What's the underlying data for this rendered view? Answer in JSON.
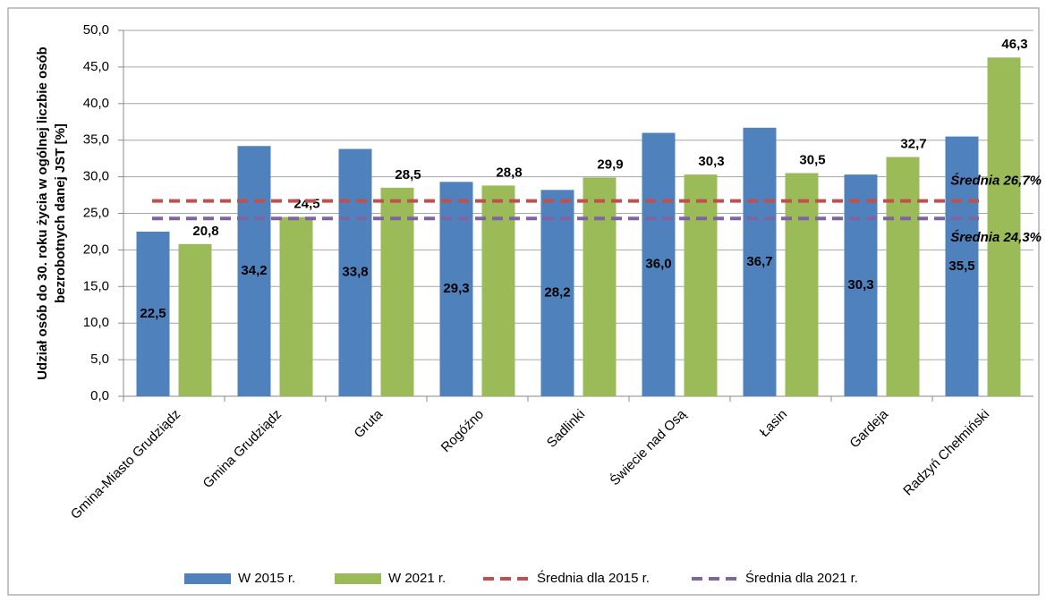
{
  "chart_data": {
    "type": "bar",
    "ylabel": [
      "Udział osób do 30. roku życia w ogólnej liczbie osób",
      "bezrobotnych danej JST [%]"
    ],
    "categories": [
      "Gmina-Miasto Grudziądz",
      "Gmina Grudziądz",
      "Gruta",
      "Rogóźno",
      "Sadlinki",
      "Świecie nad Osą",
      "Łasin",
      "Gardeja",
      "Radzyń Chełmiński"
    ],
    "series": [
      {
        "name": "W 2015 r.",
        "color": "#4f81bd",
        "values": [
          22.5,
          34.2,
          33.8,
          29.3,
          28.2,
          36.0,
          36.7,
          30.3,
          35.5
        ],
        "value_labels": [
          "22,5",
          "34,2",
          "33,8",
          "29,3",
          "28,2",
          "36,0",
          "36,7",
          "30,3",
          "35,5"
        ]
      },
      {
        "name": "W 2021 r.",
        "color": "#9bbb59",
        "values": [
          20.8,
          24.5,
          28.5,
          28.8,
          29.9,
          30.3,
          30.5,
          32.7,
          46.3
        ],
        "value_labels": [
          "20,8",
          "24,5",
          "28,5",
          "28,8",
          "29,9",
          "30,3",
          "30,5",
          "32,7",
          "46,3"
        ]
      }
    ],
    "reference_lines": [
      {
        "name": "Średnia dla 2015 r.",
        "color": "#c0504d",
        "value": 26.7,
        "label": "Średnia 26,7%"
      },
      {
        "name": "Średnia dla 2021 r.",
        "color": "#8064a2",
        "value": 24.3,
        "label": "Średnia 24,3%"
      }
    ],
    "ylim": [
      0,
      50
    ],
    "yticks": [
      {
        "value": 0,
        "label": "0,0"
      },
      {
        "value": 5,
        "label": "5,0"
      },
      {
        "value": 10,
        "label": "10,0"
      },
      {
        "value": 15,
        "label": "15,0"
      },
      {
        "value": 20,
        "label": "20,0"
      },
      {
        "value": 25,
        "label": "25,0"
      },
      {
        "value": 30,
        "label": "30,0"
      },
      {
        "value": 35,
        "label": "35,0"
      },
      {
        "value": 40,
        "label": "40,0"
      },
      {
        "value": 45,
        "label": "45,0"
      },
      {
        "value": 50,
        "label": "50,0"
      }
    ],
    "grid": true,
    "legend": "bottom"
  }
}
